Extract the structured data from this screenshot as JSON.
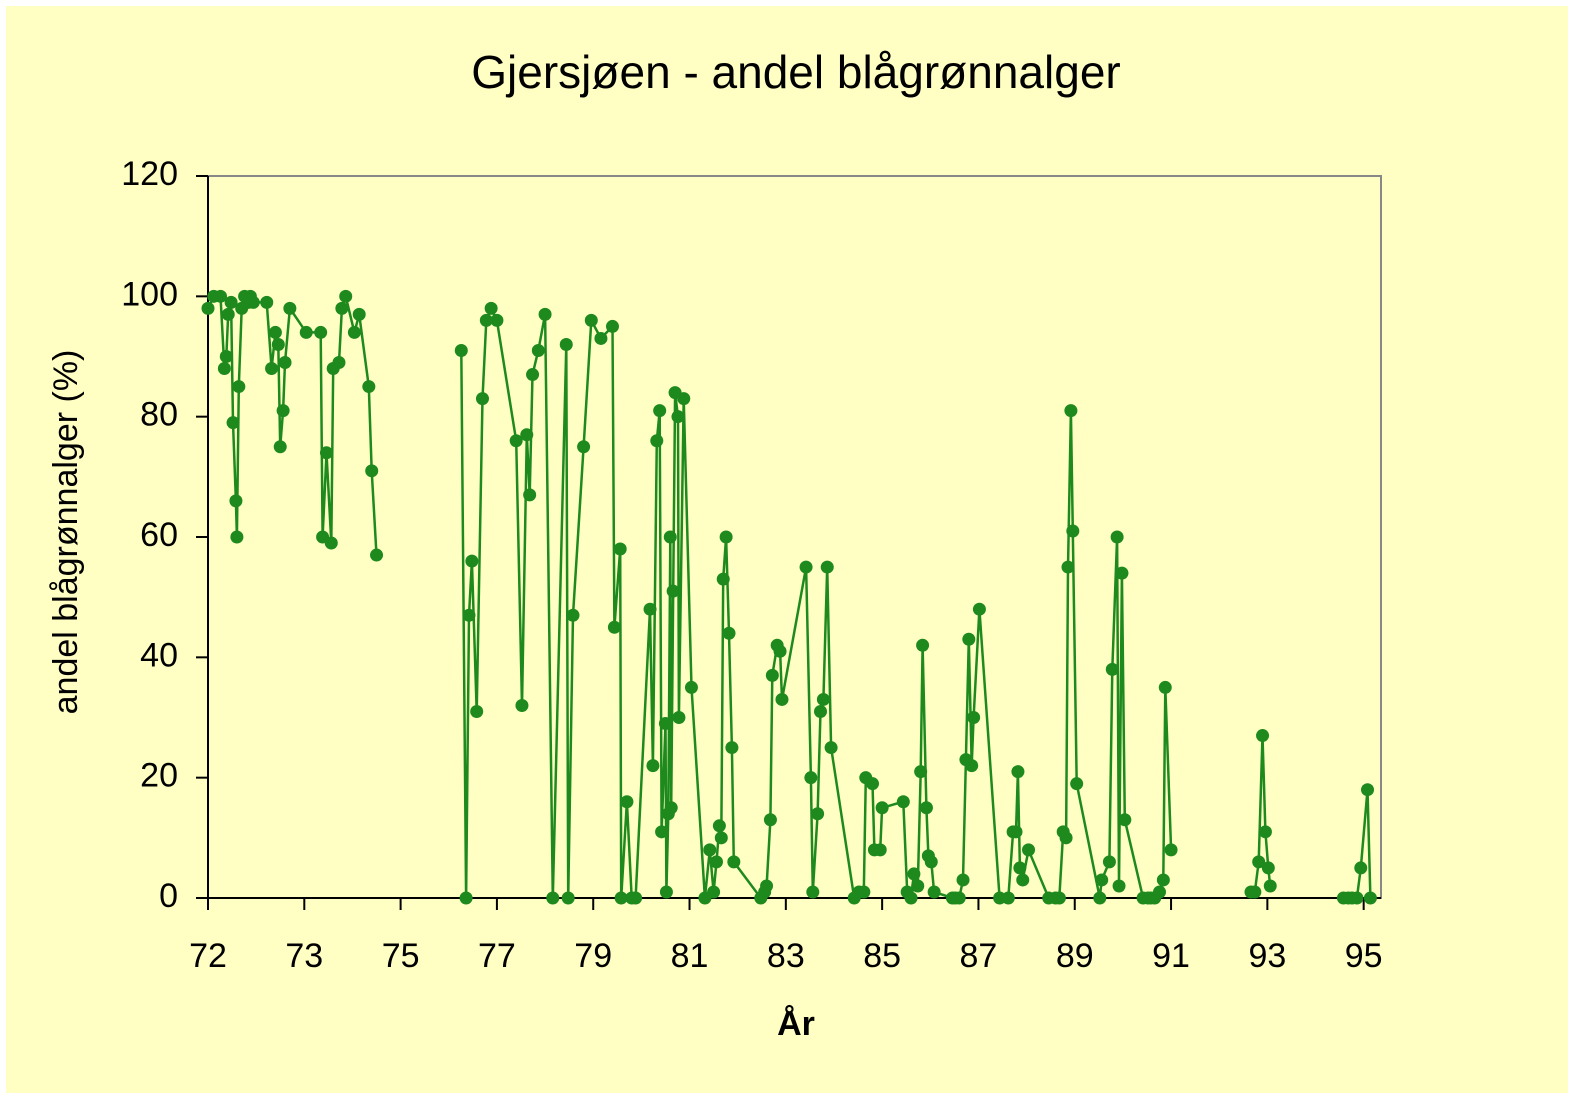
{
  "chart_data": {
    "type": "line",
    "title": "Gjersjøen - andel blågrønnalger",
    "x_label": "År",
    "y_label": "andel blågrønnalger (%)",
    "color": "#1e8a1e",
    "xlim": [
      0,
      12.18
    ],
    "xticks": [
      {
        "value": 0,
        "label": "72"
      },
      {
        "value": 1,
        "label": "73"
      },
      {
        "value": 2,
        "label": "75"
      },
      {
        "value": 3,
        "label": "77"
      },
      {
        "value": 4,
        "label": "79"
      },
      {
        "value": 5,
        "label": "81"
      },
      {
        "value": 6,
        "label": "83"
      },
      {
        "value": 7,
        "label": "85"
      },
      {
        "value": 8,
        "label": "87"
      },
      {
        "value": 9,
        "label": "89"
      },
      {
        "value": 10,
        "label": "91"
      },
      {
        "value": 11,
        "label": "93"
      },
      {
        "value": 12,
        "label": "95"
      }
    ],
    "ylim": [
      0,
      120
    ],
    "yticks": [
      0,
      20,
      40,
      60,
      80,
      100,
      120
    ],
    "x": [
      0,
      0.06,
      0.13,
      0.17,
      0.19,
      0.21,
      0.24,
      0.26,
      0.29,
      0.3,
      0.32,
      0.35,
      0.38,
      0.42,
      0.44,
      0.47,
      0.61,
      0.66,
      0.7,
      0.73,
      0.75,
      0.78,
      0.8,
      0.85,
      1.02,
      1.17,
      1.19,
      1.23,
      1.28,
      1.3,
      1.36,
      1.39,
      1.43,
      1.52,
      1.57,
      1.67,
      1.7,
      1.75,
      null,
      2.63,
      2.68,
      2.71,
      2.74,
      2.79,
      2.85,
      2.89,
      2.94,
      3.0,
      3.2,
      3.26,
      3.31,
      3.34,
      3.37,
      3.43,
      3.5,
      3.58,
      3.72,
      3.74,
      3.79,
      3.9,
      3.98,
      4.08,
      4.2,
      4.22,
      4.28,
      4.29,
      4.35,
      4.4,
      4.44,
      4.59,
      4.62,
      4.66,
      4.69,
      4.71,
      4.75,
      4.76,
      4.78,
      4.8,
      4.81,
      4.83,
      4.85,
      4.88,
      4.89,
      4.94,
      5.02,
      5.16,
      5.21,
      5.25,
      5.28,
      5.31,
      5.33,
      5.35,
      5.38,
      5.41,
      5.44,
      5.46,
      5.74,
      5.78,
      5.8,
      5.84,
      5.86,
      5.91,
      5.94,
      5.96,
      6.21,
      6.26,
      6.28,
      6.33,
      6.36,
      6.39,
      6.43,
      6.47,
      6.71,
      6.76,
      6.81,
      6.83,
      6.9,
      6.92,
      6.98,
      7.0,
      7.22,
      7.26,
      7.3,
      7.33,
      7.37,
      7.4,
      7.42,
      7.46,
      7.48,
      7.51,
      7.54,
      7.73,
      7.76,
      7.8,
      7.84,
      7.87,
      7.9,
      7.93,
      7.95,
      8.01,
      8.22,
      8.31,
      8.36,
      8.39,
      8.41,
      8.43,
      8.46,
      8.52,
      8.73,
      8.8,
      8.84,
      8.88,
      8.91,
      8.93,
      8.96,
      8.98,
      9.02,
      9.26,
      9.28,
      9.36,
      9.39,
      9.44,
      9.46,
      9.49,
      9.52,
      9.71,
      9.76,
      9.79,
      9.83,
      9.88,
      9.92,
      9.94,
      10.0,
      null,
      10.83,
      10.87,
      10.91,
      10.95,
      10.98,
      11.01,
      11.03,
      null,
      11.79,
      11.84,
      11.88,
      11.93,
      11.97,
      12.04,
      12.07
    ],
    "values": [
      98,
      100,
      100,
      88,
      90,
      97,
      99,
      79,
      66,
      60,
      85,
      98,
      100,
      99,
      100,
      99,
      99,
      88,
      94,
      92,
      75,
      81,
      89,
      98,
      94,
      94,
      60,
      74,
      59,
      88,
      89,
      98,
      100,
      94,
      97,
      85,
      71,
      57,
      null,
      91,
      0,
      47,
      56,
      31,
      83,
      96,
      98,
      96,
      76,
      32,
      77,
      67,
      87,
      91,
      97,
      0,
      92,
      0,
      47,
      75,
      96,
      93,
      95,
      45,
      58,
      0,
      16,
      0,
      0,
      48,
      22,
      76,
      81,
      11,
      29,
      1,
      14,
      60,
      15,
      51,
      84,
      80,
      30,
      83,
      35,
      0,
      8,
      1,
      6,
      12,
      10,
      53,
      60,
      44,
      25,
      6,
      0,
      1,
      2,
      13,
      37,
      42,
      41,
      33,
      55,
      20,
      1,
      14,
      31,
      33,
      55,
      25,
      0,
      1,
      1,
      20,
      19,
      8,
      8,
      15,
      16,
      1,
      0,
      4,
      2,
      21,
      42,
      15,
      7,
      6,
      1,
      0,
      0,
      0,
      3,
      23,
      43,
      22,
      30,
      48,
      0,
      0,
      11,
      11,
      21,
      5,
      3,
      8,
      0,
      0,
      0,
      11,
      10,
      55,
      81,
      61,
      19,
      0,
      3,
      6,
      38,
      60,
      2,
      54,
      13,
      0,
      0,
      0,
      0,
      1,
      3,
      35,
      8,
      null,
      1,
      1,
      6,
      27,
      11,
      5,
      2,
      null,
      0,
      0,
      0,
      0,
      5,
      18,
      0
    ]
  }
}
